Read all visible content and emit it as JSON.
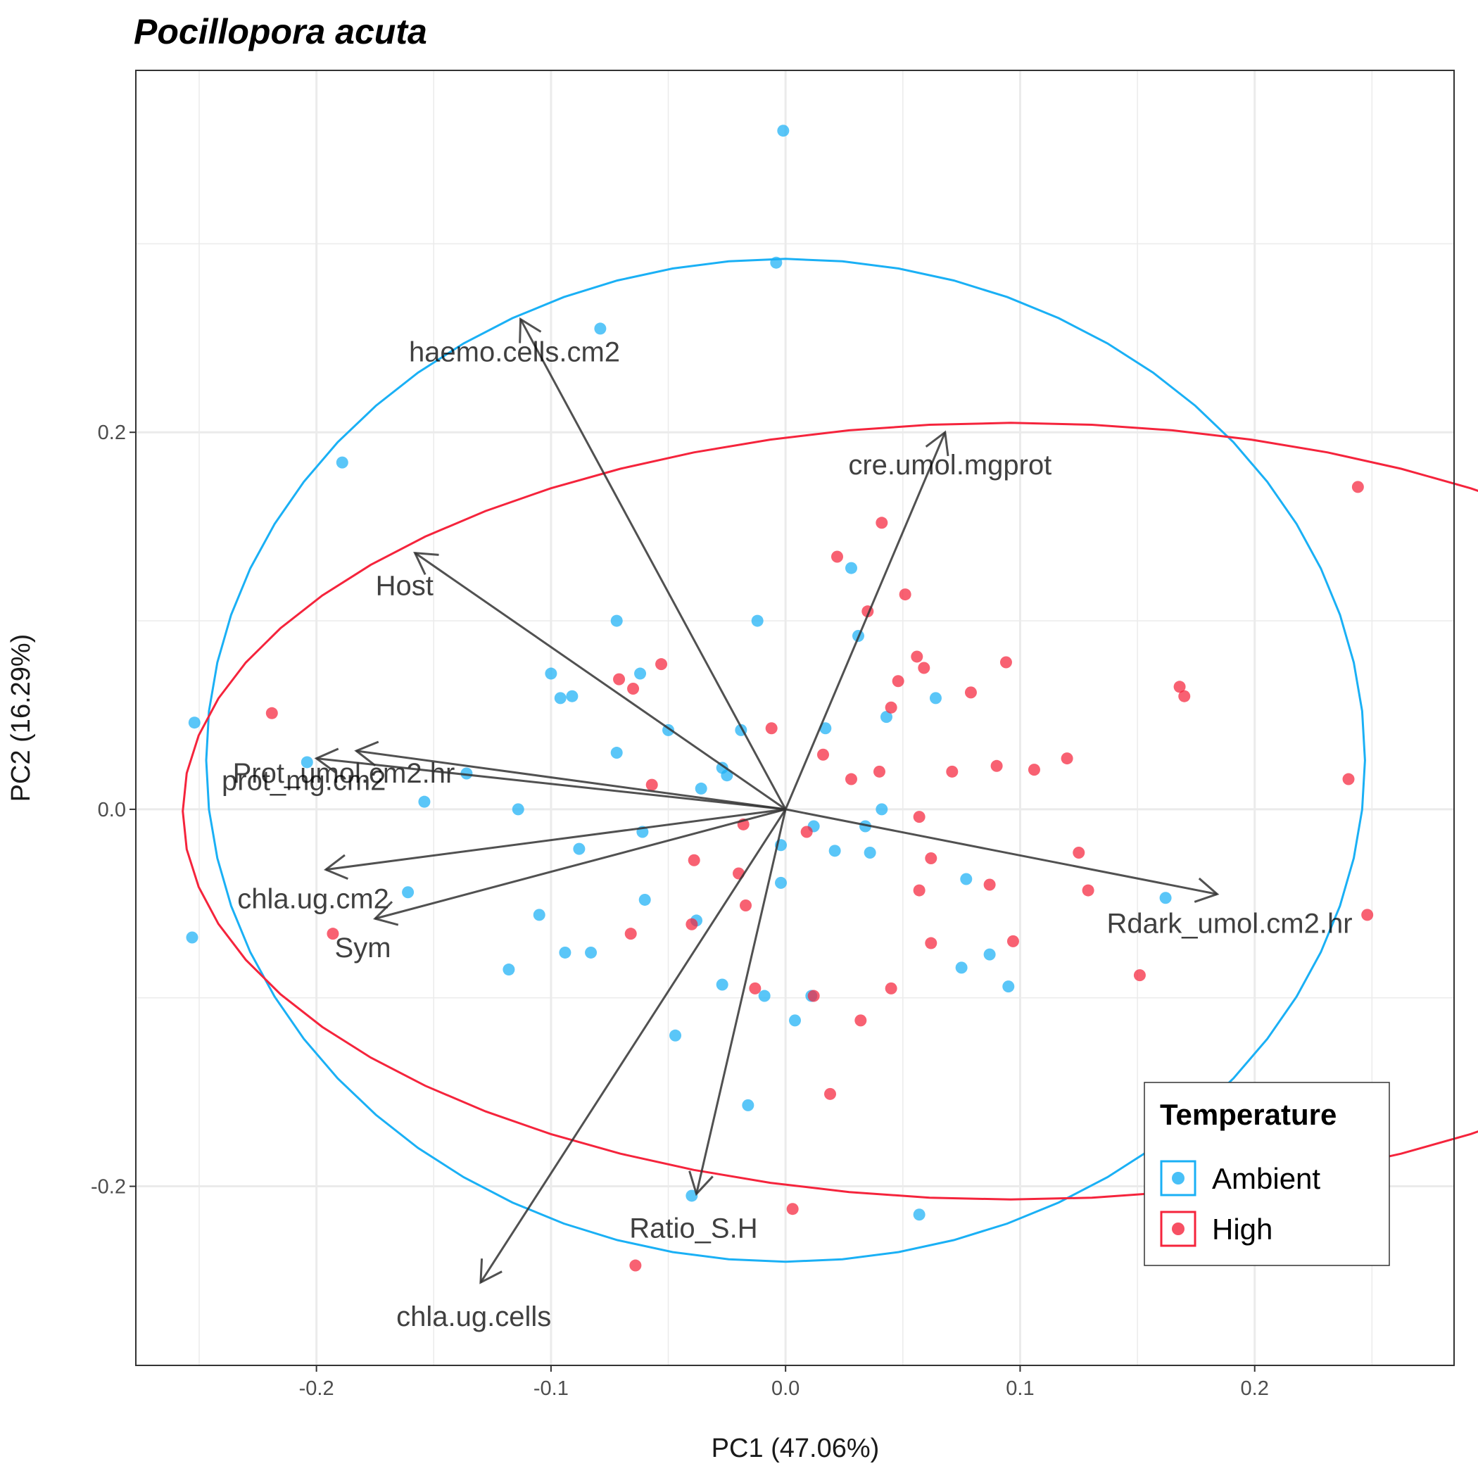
{
  "chart_data": {
    "type": "scatter",
    "title": "Pocillopora acuta",
    "xlabel": "PC1 (47.06%)",
    "ylabel": "PC2 (16.29%)",
    "xlim": [
      -0.277,
      0.285
    ],
    "ylim": [
      -0.295,
      0.392
    ],
    "x_ticks": [
      -0.2,
      -0.1,
      0.0,
      0.1,
      0.2
    ],
    "x_tick_labels": [
      "-0.2",
      "-0.1",
      "0.0",
      "0.1",
      "0.2"
    ],
    "y_ticks": [
      -0.2,
      0.0,
      0.2
    ],
    "y_tick_labels": [
      "-0.2",
      "0.0",
      "0.2"
    ],
    "grid": true,
    "legend": {
      "title": "Temperature",
      "position": "bottom-right",
      "entries": [
        {
          "label": "Ambient",
          "color": "#1ab0f5"
        },
        {
          "label": "High",
          "color": "#f5243c"
        }
      ]
    },
    "series": [
      {
        "name": "Ambient",
        "color": "#1ab0f5",
        "ellipse": {
          "cx": 0.0,
          "cy": 0.026,
          "rx": 0.247,
          "ry": 0.266
        },
        "points": [
          [
            -0.001,
            0.36
          ],
          [
            -0.004,
            0.29
          ],
          [
            -0.079,
            0.255
          ],
          [
            -0.189,
            0.184
          ],
          [
            -0.252,
            0.046
          ],
          [
            -0.204,
            0.025
          ],
          [
            -0.154,
            0.004
          ],
          [
            -0.114,
            0.0
          ],
          [
            -0.161,
            -0.044
          ],
          [
            -0.105,
            -0.056
          ],
          [
            -0.253,
            -0.068
          ],
          [
            -0.118,
            -0.085
          ],
          [
            -0.094,
            -0.076
          ],
          [
            -0.083,
            -0.076
          ],
          [
            -0.088,
            -0.021
          ],
          [
            -0.061,
            -0.012
          ],
          [
            -0.06,
            -0.048
          ],
          [
            -0.1,
            0.072
          ],
          [
            -0.096,
            0.059
          ],
          [
            -0.091,
            0.06
          ],
          [
            -0.072,
            0.1
          ],
          [
            -0.062,
            0.072
          ],
          [
            -0.072,
            0.03
          ],
          [
            -0.05,
            0.042
          ],
          [
            -0.036,
            0.011
          ],
          [
            -0.019,
            0.042
          ],
          [
            -0.027,
            0.022
          ],
          [
            -0.025,
            0.018
          ],
          [
            -0.012,
            0.1
          ],
          [
            -0.136,
            0.019
          ],
          [
            -0.038,
            -0.059
          ],
          [
            -0.027,
            -0.093
          ],
          [
            -0.047,
            -0.12
          ],
          [
            -0.009,
            -0.099
          ],
          [
            -0.016,
            -0.157
          ],
          [
            -0.04,
            -0.205
          ],
          [
            0.004,
            -0.112
          ],
          [
            0.011,
            -0.099
          ],
          [
            -0.002,
            -0.019
          ],
          [
            -0.002,
            -0.039
          ],
          [
            0.012,
            -0.009
          ],
          [
            0.017,
            0.043
          ],
          [
            0.021,
            -0.022
          ],
          [
            0.028,
            0.128
          ],
          [
            0.031,
            0.092
          ],
          [
            0.034,
            -0.009
          ],
          [
            0.036,
            -0.023
          ],
          [
            0.041,
            0.0
          ],
          [
            0.043,
            0.049
          ],
          [
            0.064,
            0.059
          ],
          [
            0.077,
            -0.037
          ],
          [
            0.075,
            -0.084
          ],
          [
            0.087,
            -0.077
          ],
          [
            0.095,
            -0.094
          ],
          [
            0.162,
            -0.047
          ],
          [
            0.057,
            -0.215
          ]
        ]
      },
      {
        "name": "High",
        "color": "#f5243c",
        "ellipse": {
          "cx": 0.096,
          "cy": -0.001,
          "rx": 0.353,
          "ry": 0.206
        },
        "points": [
          [
            -0.219,
            0.051
          ],
          [
            -0.193,
            -0.066
          ],
          [
            -0.071,
            0.069
          ],
          [
            -0.065,
            0.064
          ],
          [
            -0.053,
            0.077
          ],
          [
            -0.057,
            0.013
          ],
          [
            -0.039,
            -0.027
          ],
          [
            -0.04,
            -0.061
          ],
          [
            -0.066,
            -0.066
          ],
          [
            -0.02,
            -0.034
          ],
          [
            -0.017,
            -0.051
          ],
          [
            -0.018,
            -0.008
          ],
          [
            -0.006,
            0.043
          ],
          [
            -0.013,
            -0.095
          ],
          [
            0.009,
            -0.012
          ],
          [
            0.012,
            -0.099
          ],
          [
            0.016,
            0.029
          ],
          [
            0.019,
            -0.151
          ],
          [
            0.003,
            -0.212
          ],
          [
            -0.064,
            -0.242
          ],
          [
            0.022,
            0.134
          ],
          [
            0.028,
            0.016
          ],
          [
            0.035,
            0.105
          ],
          [
            0.04,
            0.02
          ],
          [
            0.041,
            0.152
          ],
          [
            0.045,
            0.054
          ],
          [
            0.048,
            0.068
          ],
          [
            0.051,
            0.114
          ],
          [
            0.056,
            0.081
          ],
          [
            0.057,
            -0.004
          ],
          [
            0.059,
            0.075
          ],
          [
            0.062,
            -0.026
          ],
          [
            0.062,
            -0.071
          ],
          [
            0.057,
            -0.043
          ],
          [
            0.071,
            0.02
          ],
          [
            0.079,
            0.062
          ],
          [
            0.087,
            -0.04
          ],
          [
            0.09,
            0.023
          ],
          [
            0.094,
            0.078
          ],
          [
            0.097,
            -0.07
          ],
          [
            0.106,
            0.021
          ],
          [
            0.12,
            0.027
          ],
          [
            0.125,
            -0.023
          ],
          [
            0.129,
            -0.043
          ],
          [
            0.151,
            -0.088
          ],
          [
            0.045,
            -0.095
          ],
          [
            0.032,
            -0.112
          ],
          [
            0.168,
            0.065
          ],
          [
            0.17,
            0.06
          ],
          [
            0.24,
            0.016
          ],
          [
            0.244,
            0.171
          ],
          [
            0.248,
            -0.056
          ]
        ]
      }
    ],
    "loadings": [
      {
        "label": "haemo.cells.cm2",
        "x": -0.113,
        "y": 0.26
      },
      {
        "label": "cre.umol.mgprot",
        "x": 0.068,
        "y": 0.2
      },
      {
        "label": "Host",
        "x": -0.158,
        "y": 0.136
      },
      {
        "label": "Prot_umol.cm2.hr",
        "x": -0.183,
        "y": 0.031
      },
      {
        "label": "prot_mg.cm2",
        "x": -0.2,
        "y": 0.027
      },
      {
        "label": "chla.ug.cm2",
        "x": -0.196,
        "y": -0.032
      },
      {
        "label": "Sym",
        "x": -0.175,
        "y": -0.058
      },
      {
        "label": "Rdark_umol.cm2.hr",
        "x": 0.184,
        "y": -0.045
      },
      {
        "label": "Ratio_S.H",
        "x": -0.038,
        "y": -0.204
      },
      {
        "label": "chla.ug.cells",
        "x": -0.13,
        "y": -0.251
      }
    ]
  }
}
